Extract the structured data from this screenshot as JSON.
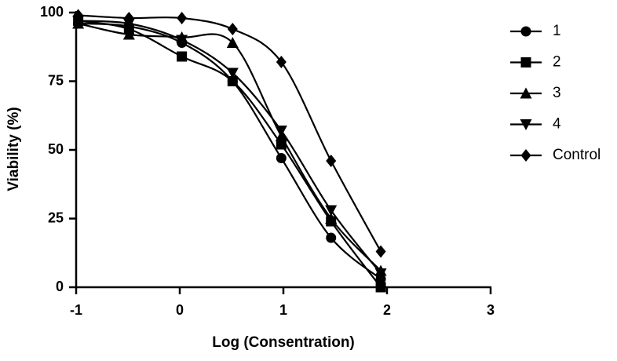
{
  "chart_data": {
    "type": "scatter",
    "x_label": "Log (Consentration)",
    "y_label": "Viability (%)",
    "xlim": [
      -1,
      3
    ],
    "xticks": [
      -1,
      0,
      1,
      2,
      3
    ],
    "ylim": [
      0,
      100
    ],
    "yticks": [
      0,
      25,
      50,
      75,
      100
    ],
    "x": [
      -0.98,
      -0.49,
      0.02,
      0.51,
      0.98,
      1.46,
      1.94
    ],
    "series": [
      {
        "name": "1",
        "color": "#000000",
        "marker": "circle",
        "values": [
          96,
          95,
          89,
          75,
          47,
          18,
          3
        ]
      },
      {
        "name": "2",
        "color": "#000000",
        "marker": "square",
        "values": [
          97,
          94,
          84,
          75,
          52,
          24,
          0
        ]
      },
      {
        "name": "3",
        "color": "#000000",
        "marker": "triangle-up",
        "values": [
          96,
          92,
          91,
          89,
          55,
          25,
          6
        ]
      },
      {
        "name": "4",
        "color": "#000000",
        "marker": "triangle-down",
        "values": [
          97,
          96,
          90,
          78,
          57,
          28,
          5
        ]
      },
      {
        "name": "Control",
        "color": "#000000",
        "marker": "diamond",
        "values": [
          99,
          98,
          98,
          94,
          82,
          46,
          13
        ]
      }
    ]
  }
}
